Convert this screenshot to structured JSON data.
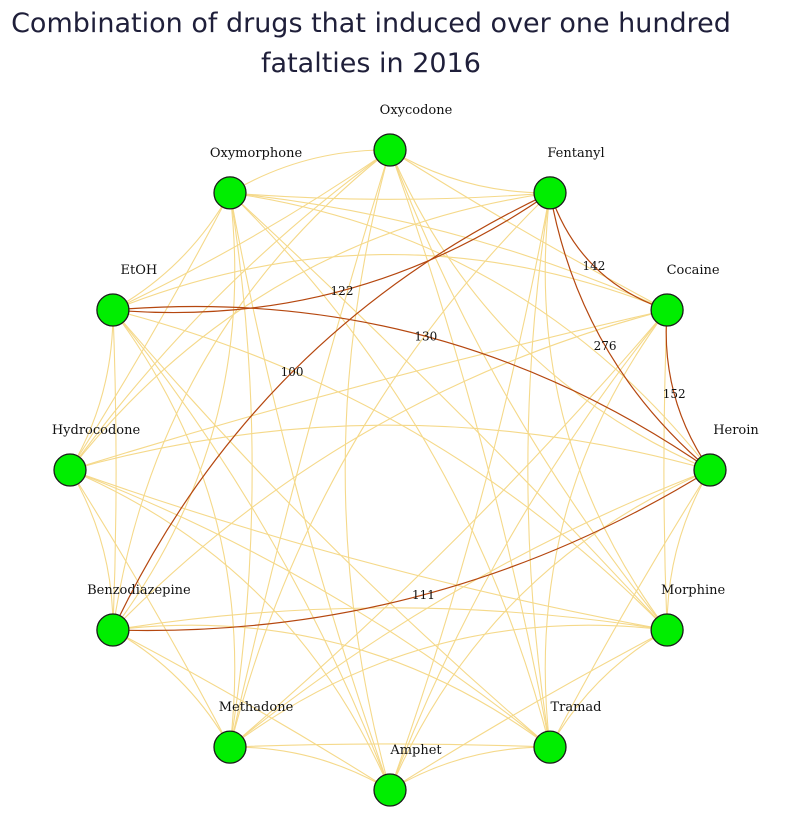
{
  "title": {
    "line1": "Combination of drugs that induced over one hundred",
    "line2": "fatalties in 2016"
  },
  "colors": {
    "node_fill": "#00ee00",
    "node_stroke": "#1a1a1a",
    "weak_edge": "#f5d98a",
    "strong_edge": "#b5470f"
  },
  "nodes": [
    {
      "id": "oxycodone",
      "label": "Oxycodone"
    },
    {
      "id": "fentanyl",
      "label": "Fentanyl"
    },
    {
      "id": "cocaine",
      "label": "Cocaine"
    },
    {
      "id": "heroin",
      "label": "Heroin"
    },
    {
      "id": "morphine",
      "label": "Morphine"
    },
    {
      "id": "tramad",
      "label": "Tramad"
    },
    {
      "id": "amphet",
      "label": "Amphet"
    },
    {
      "id": "methadone",
      "label": "Methadone"
    },
    {
      "id": "benzodiazepine",
      "label": "Benzodiazepine"
    },
    {
      "id": "hydrocodone",
      "label": "Hydrocodone"
    },
    {
      "id": "etoh",
      "label": "EtOH"
    },
    {
      "id": "oxymorphone",
      "label": "Oxymorphone"
    }
  ],
  "strong_edges": [
    {
      "source": "fentanyl",
      "target": "cocaine",
      "value": "142"
    },
    {
      "source": "fentanyl",
      "target": "heroin",
      "value": "276"
    },
    {
      "source": "cocaine",
      "target": "heroin",
      "value": "152"
    },
    {
      "source": "etoh",
      "target": "fentanyl",
      "value": "122"
    },
    {
      "source": "etoh",
      "target": "heroin",
      "value": "130"
    },
    {
      "source": "benzodiazepine",
      "target": "fentanyl",
      "value": "100"
    },
    {
      "source": "benzodiazepine",
      "target": "heroin",
      "value": "111"
    }
  ]
}
